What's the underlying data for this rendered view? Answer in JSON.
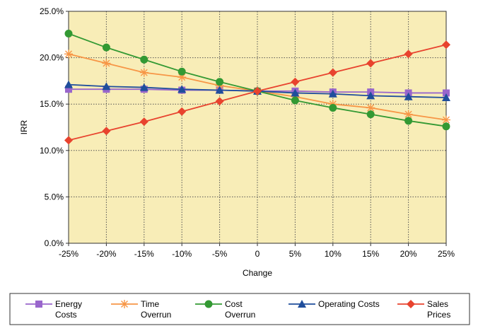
{
  "chart_data": {
    "type": "line",
    "title": "",
    "xlabel": "Change",
    "ylabel": "IRR",
    "categories": [
      "-25%",
      "-20%",
      "-15%",
      "-10%",
      "-5%",
      "0",
      "5%",
      "10%",
      "15%",
      "20%",
      "25%"
    ],
    "ylim": [
      0,
      25
    ],
    "yticks": [
      "0.0%",
      "5.0%",
      "10.0%",
      "15.0%",
      "20.0%",
      "25.0%"
    ],
    "grid": true,
    "legend_position": "bottom",
    "plot_background": "#f8edb7",
    "series": [
      {
        "name": "Energy Costs",
        "legend_lines": [
          "Energy",
          "Costs"
        ],
        "color": "#9966cc",
        "marker": "square",
        "values": [
          16.6,
          16.6,
          16.6,
          16.5,
          16.5,
          16.4,
          16.4,
          16.3,
          16.3,
          16.2,
          16.2
        ]
      },
      {
        "name": "Time Overrun",
        "legend_lines": [
          "Time",
          "Overrun"
        ],
        "color": "#f79646",
        "marker": "star",
        "values": [
          20.4,
          19.4,
          18.4,
          17.9,
          17.0,
          16.4,
          15.8,
          15.0,
          14.6,
          13.9,
          13.3
        ]
      },
      {
        "name": "Cost Overrun",
        "legend_lines": [
          "Cost",
          "Overrun"
        ],
        "color": "#339933",
        "marker": "circle",
        "values": [
          22.6,
          21.1,
          19.8,
          18.5,
          17.4,
          16.4,
          15.4,
          14.6,
          13.9,
          13.2,
          12.6
        ]
      },
      {
        "name": "Operating Costs",
        "legend_lines": [
          "Operating Costs"
        ],
        "color": "#1f4e9c",
        "marker": "triangle",
        "values": [
          17.1,
          16.9,
          16.8,
          16.6,
          16.5,
          16.4,
          16.2,
          16.1,
          15.9,
          15.8,
          15.7
        ]
      },
      {
        "name": "Sales Prices",
        "legend_lines": [
          "Sales",
          "Prices"
        ],
        "color": "#e8432e",
        "marker": "diamond",
        "values": [
          11.1,
          12.1,
          13.1,
          14.2,
          15.3,
          16.4,
          17.4,
          18.4,
          19.4,
          20.4,
          21.4
        ]
      }
    ]
  }
}
